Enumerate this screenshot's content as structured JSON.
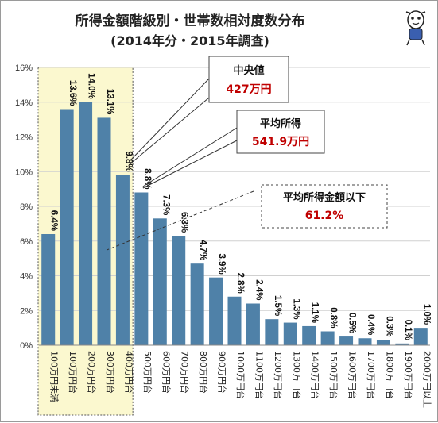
{
  "chart_data": {
    "type": "bar",
    "title": "所得金額階級別・世帯数相対度数分布",
    "subtitle": "(2014年分・2015年調査)",
    "ylim": [
      0,
      16
    ],
    "yticks": [
      "0%",
      "2%",
      "4%",
      "6%",
      "8%",
      "10%",
      "12%",
      "14%",
      "16%"
    ],
    "categories": [
      "100万円未満",
      "100万円台",
      "200万円台",
      "300万円台",
      "400万円台",
      "500万円台",
      "600万円台",
      "700万円台",
      "800万円台",
      "900万円台",
      "1000万円台",
      "1100万円台",
      "1200万円台",
      "1300万円台",
      "1400万円台",
      "1500万円台",
      "1600万円台",
      "1700万円台",
      "1800万円台",
      "1900万円台",
      "2000万円以上"
    ],
    "values": [
      6.4,
      13.6,
      14.0,
      13.1,
      9.8,
      8.8,
      7.3,
      6.3,
      4.7,
      3.9,
      2.8,
      2.4,
      1.5,
      1.3,
      1.1,
      0.8,
      0.5,
      0.4,
      0.3,
      0.1,
      1.0
    ],
    "data_labels": [
      "6.4%",
      "13.6%",
      "14.0%",
      "13.1%",
      "9.8%",
      "8.8%",
      "7.3%",
      "6.3%",
      "4.7%",
      "3.9%",
      "2.8%",
      "2.4%",
      "1.5%",
      "1.3%",
      "1.1%",
      "0.8%",
      "0.5%",
      "0.4%",
      "0.3%",
      "0.1%",
      "1.0%"
    ],
    "bar_color": "#4f81a8",
    "highlight_color": "#fbf8cf",
    "highlight_categories": [
      "100万円未満",
      "400万円台"
    ],
    "grid": true,
    "annotations": {
      "median": {
        "label": "中央値",
        "value": "427万円",
        "category": "400万円台"
      },
      "mean": {
        "label": "平均所得",
        "value": "541.9万円",
        "category": "500万円台"
      },
      "below_mean": {
        "label": "平均所得金額以下",
        "value": "61.2%"
      }
    }
  }
}
